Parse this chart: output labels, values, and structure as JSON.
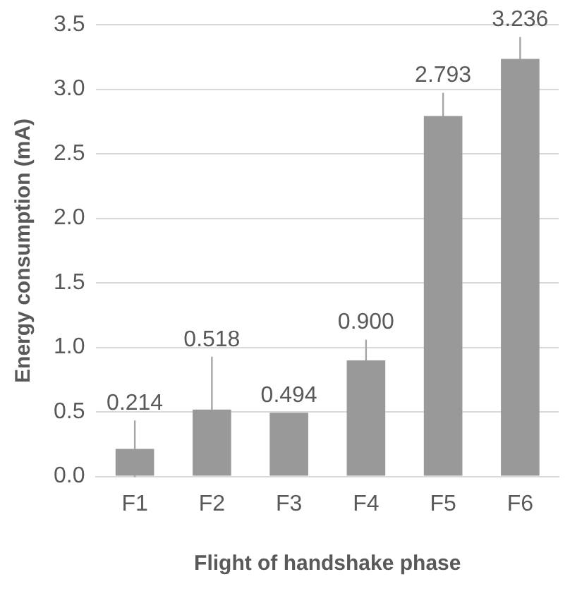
{
  "chart_data": {
    "type": "bar",
    "xlabel": "Flight of handshake phase",
    "ylabel": "Energy consumption (mA)",
    "categories": [
      "F1",
      "F2",
      "F3",
      "F4",
      "F5",
      "F6"
    ],
    "values": [
      0.214,
      0.518,
      0.494,
      0.9,
      2.793,
      3.236
    ],
    "value_labels": [
      "0.214",
      "0.518",
      "0.494",
      "0.900",
      "2.793",
      "3.236"
    ],
    "errors": [
      0.22,
      0.41,
      null,
      0.16,
      0.18,
      0.17
    ],
    "color": "#999999",
    "ylim": [
      0,
      3.5
    ],
    "yticks": [
      {
        "value": 0,
        "label": "0.0"
      },
      {
        "value": 0.5,
        "label": "0.5"
      },
      {
        "value": 1,
        "label": "1.0"
      },
      {
        "value": 1.5,
        "label": "1.5"
      },
      {
        "value": 2,
        "label": "2.0"
      },
      {
        "value": 2.5,
        "label": "2.5"
      },
      {
        "value": 3,
        "label": "3.0"
      },
      {
        "value": 3.5,
        "label": "3.5"
      }
    ],
    "grid": "y",
    "legend": false
  }
}
